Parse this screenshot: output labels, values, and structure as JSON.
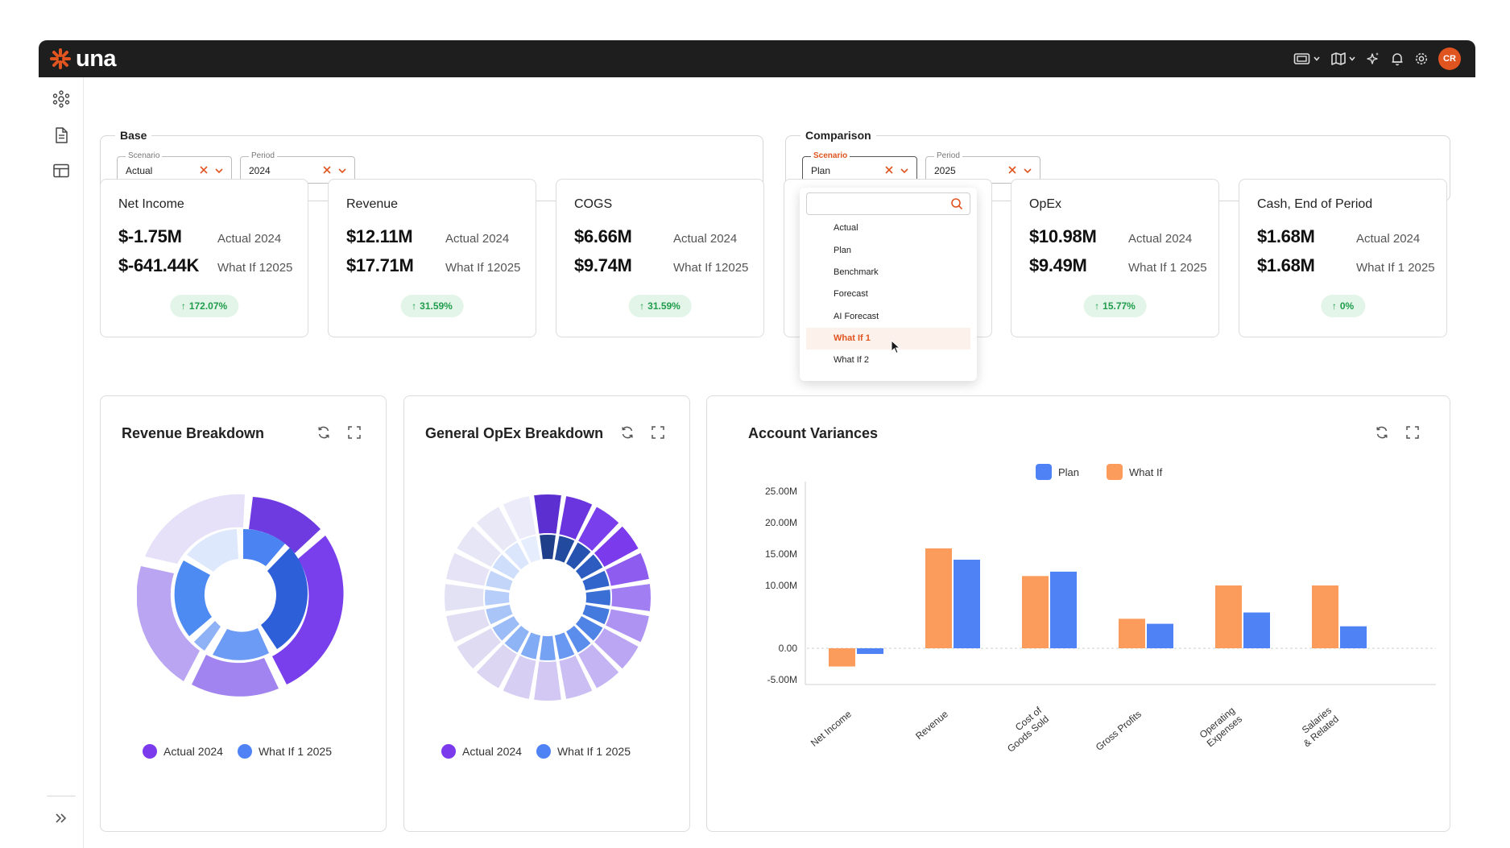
{
  "app": {
    "logo_text": "una",
    "user_initials": "CR"
  },
  "top_icons": [
    "display-icon",
    "map-icon",
    "sparkle-icon",
    "bell-icon",
    "gear-icon"
  ],
  "base": {
    "legend": "Base",
    "scenario": {
      "label": "Scenario",
      "value": "Actual"
    },
    "period": {
      "label": "Period",
      "value": "2024"
    }
  },
  "comparison": {
    "legend": "Comparison",
    "scenario": {
      "label": "Scenario",
      "value": "Plan"
    },
    "period": {
      "label": "Period",
      "value": "2025"
    }
  },
  "dropdown": {
    "options": [
      "Actual",
      "Plan",
      "Benchmark",
      "Forecast",
      "AI Forecast",
      "What If 1",
      "What If 2"
    ],
    "highlighted": "What If 1"
  },
  "cards": [
    {
      "title": "Net Income",
      "value1": "$-1.75M",
      "label1": "Actual 2024",
      "value2": "$-641.44K",
      "label2": "What If 12025",
      "change": "172.07%"
    },
    {
      "title": "Revenue",
      "value1": "$12.11M",
      "label1": "Actual 2024",
      "value2": "$17.71M",
      "label2": "What If 12025",
      "change": "31.59%"
    },
    {
      "title": "COGS",
      "value1": "$6.66M",
      "label1": "Actual 2024",
      "value2": "$9.74M",
      "label2": "What If 12025",
      "change": "31.59%"
    },
    {
      "title": "OpEx",
      "value1": "$10.98M",
      "label1": "Actual 2024",
      "value2": "$9.49M",
      "label2": "What If 1 2025",
      "change": "15.77%"
    },
    {
      "title": "Cash, End of Period",
      "value1": "$1.68M",
      "label1": "Actual 2024",
      "value2": "$1.68M",
      "label2": "What If 1 2025",
      "change": "0%"
    }
  ],
  "revenue_breakdown": {
    "title": "Revenue Breakdown",
    "legend": [
      {
        "label": "Actual 2024",
        "color": "#7c3aed"
      },
      {
        "label": "What If 1 2025",
        "color": "#4f83f5"
      }
    ]
  },
  "opex_breakdown": {
    "title": "General OpEx Breakdown",
    "legend": [
      {
        "label": "Actual 2024",
        "color": "#7c3aed"
      },
      {
        "label": "What If 1 2025",
        "color": "#4f83f5"
      }
    ]
  },
  "variances": {
    "title": "Account Variances",
    "legend": [
      {
        "label": "Plan",
        "color": "#4f83f5"
      },
      {
        "label": "What If",
        "color": "#fb9c5d"
      }
    ]
  },
  "chart_data": {
    "type": "bar",
    "title": "Account Variances",
    "categories": [
      "Net Income",
      "Revenue",
      "Cost of Goods Sold",
      "Gross Profits",
      "Operating Expenses",
      "Salaries & Related"
    ],
    "category_labels": [
      [
        "Net Income"
      ],
      [
        "Revenue"
      ],
      [
        "Cost of",
        "Goods Sold"
      ],
      [
        "Gross Profits"
      ],
      [
        "Operating",
        "Expenses"
      ],
      [
        "Salaries",
        "& Related"
      ]
    ],
    "series": [
      {
        "name": "What If",
        "color": "#fb9c5d",
        "values": [
          -2.9,
          15.9,
          11.5,
          4.7,
          10.0,
          10.0
        ]
      },
      {
        "name": "Plan",
        "color": "#4f83f5",
        "values": [
          -0.9,
          14.1,
          12.2,
          3.9,
          5.7,
          3.5
        ]
      }
    ],
    "yticks": [
      25,
      20,
      15,
      10,
      0,
      -5
    ],
    "ytick_labels": [
      "25.00M",
      "20.00M",
      "15.00M",
      "10.00M",
      "0.00",
      "-5.00M"
    ],
    "ylim": [
      -5,
      25
    ],
    "xlabel": "",
    "ylabel": ""
  }
}
